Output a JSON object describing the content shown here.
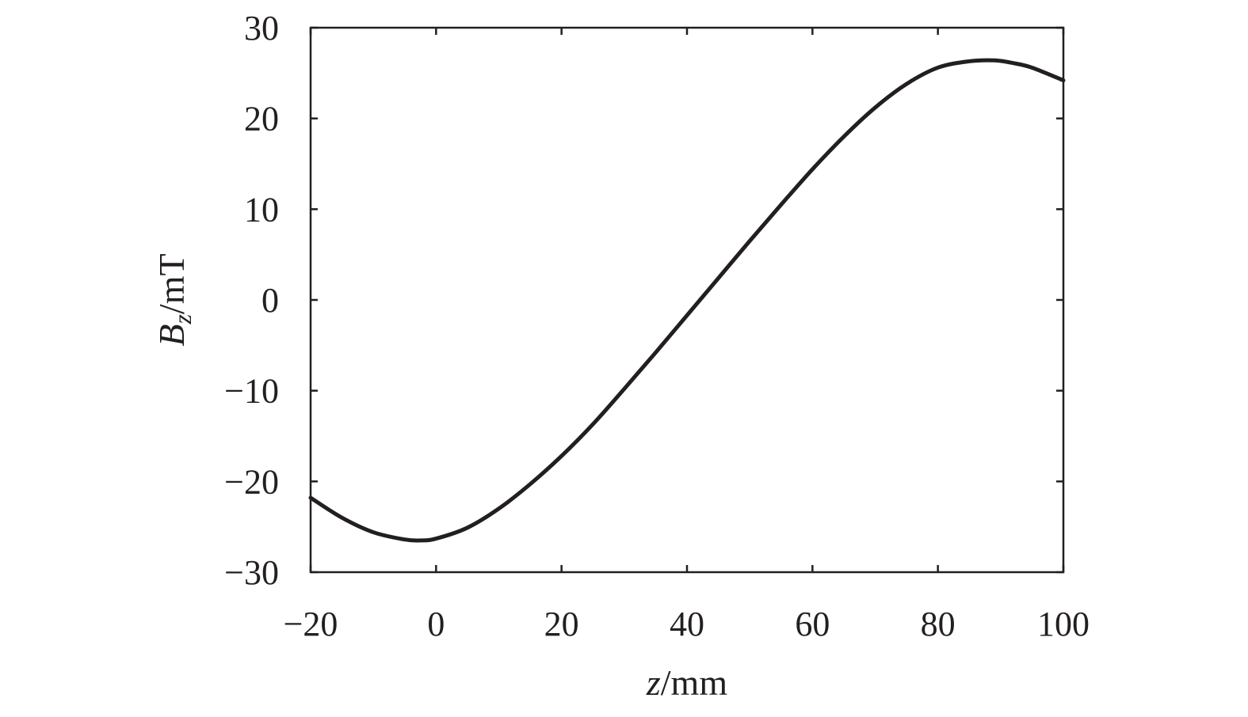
{
  "chart_data": {
    "type": "line",
    "title": "",
    "xlabel": {
      "var": "z",
      "unit": "/mm"
    },
    "ylabel": {
      "var": "B",
      "sub": "z",
      "unit": "/mT"
    },
    "xlim": [
      -20,
      100
    ],
    "ylim": [
      -30,
      30
    ],
    "x_ticks": [
      -20,
      0,
      20,
      40,
      60,
      80,
      100
    ],
    "y_ticks": [
      -30,
      -20,
      -10,
      0,
      10,
      20,
      30
    ],
    "x_tick_labels": [
      "−20",
      "0",
      "20",
      "40",
      "60",
      "80",
      "100"
    ],
    "y_tick_labels": [
      "−30",
      "−20",
      "−10",
      "0",
      "10",
      "20",
      "30"
    ],
    "grid": false,
    "series": [
      {
        "color": "#231f20",
        "x": [
          -20,
          -15,
          -10,
          -5,
          -2.5,
          0,
          5,
          10,
          15,
          20,
          25,
          30,
          35,
          40,
          45,
          50,
          55,
          60,
          65,
          70,
          75,
          80,
          85,
          89,
          92,
          95,
          100
        ],
        "y": [
          -21.8,
          -24.0,
          -25.6,
          -26.4,
          -26.5,
          -26.3,
          -25.1,
          -23.0,
          -20.3,
          -17.2,
          -13.7,
          -9.8,
          -5.8,
          -1.7,
          2.4,
          6.5,
          10.5,
          14.4,
          18.0,
          21.2,
          23.8,
          25.6,
          26.3,
          26.4,
          26.1,
          25.6,
          24.2
        ]
      }
    ]
  }
}
